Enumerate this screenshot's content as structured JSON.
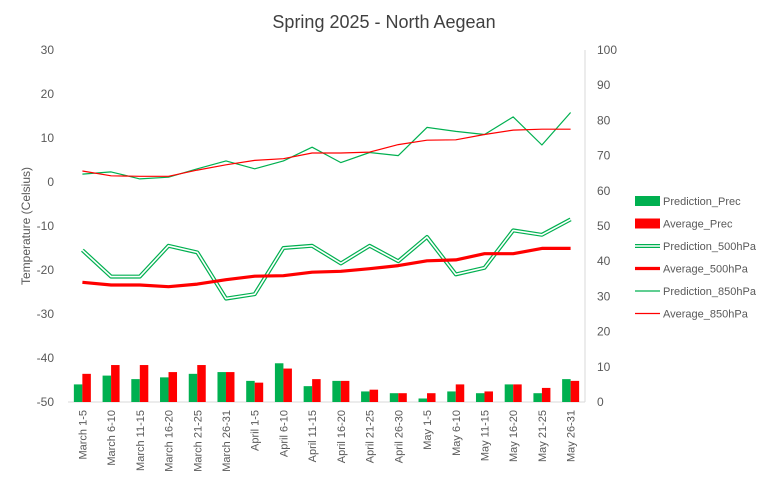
{
  "chart_data": {
    "type": "line",
    "title": "Spring 2025 - North Aegean",
    "ylabel": "Temperature (Celsius)",
    "xlabel": "",
    "ylim": [
      -50,
      30
    ],
    "y2lim": [
      0,
      100
    ],
    "yticks": [
      30,
      20,
      10,
      0,
      -10,
      -20,
      -30,
      -40,
      -50
    ],
    "y2ticks": [
      100,
      90,
      80,
      70,
      60,
      50,
      40,
      30,
      20,
      10,
      0
    ],
    "grid": false,
    "legend_position": "right",
    "categories": [
      "March 1-5",
      "March 6-10",
      "March 11-15",
      "March 16-20",
      "March 21-25",
      "March 26-31",
      "April 1-5",
      "April 6-10",
      "April 11-15",
      "April 16-20",
      "April 21-25",
      "April 26-30",
      "May 1-5",
      "May 6-10",
      "May 11-15",
      "May 16-20",
      "May 21-25",
      "May 26-31"
    ],
    "series": [
      {
        "name": "Prediction_Prec",
        "type": "bar",
        "axis": "right",
        "color": "#00b050",
        "values": [
          5,
          7.5,
          6.5,
          7,
          8,
          8.5,
          6,
          11,
          4.5,
          6,
          3,
          2.5,
          1,
          3,
          2.5,
          5,
          2.5,
          6.5
        ]
      },
      {
        "name": "Average_Prec",
        "type": "bar",
        "axis": "right",
        "color": "#ff0000",
        "values": [
          8,
          10.5,
          10.5,
          8.5,
          10.5,
          8.5,
          5.5,
          9.5,
          6.5,
          6,
          3.5,
          2.5,
          2.5,
          5,
          3,
          5,
          4,
          6
        ]
      },
      {
        "name": "Prediction_500hPa",
        "type": "line",
        "style": "double",
        "axis": "left",
        "color": "#00b050",
        "values": [
          -15.5,
          -21.5,
          -21.5,
          -14.5,
          -16,
          -26.5,
          -25.5,
          -15,
          -14.5,
          -18.5,
          -14.5,
          -18,
          -12.5,
          -21,
          -19.5,
          -11,
          -12,
          -8.5
        ]
      },
      {
        "name": "Average_500hPa",
        "type": "line",
        "style": "thick",
        "axis": "left",
        "color": "#ff0000",
        "values": [
          -22.8,
          -23.4,
          -23.4,
          -23.8,
          -23.2,
          -22.2,
          -21.4,
          -21.3,
          -20.5,
          -20.3,
          -19.7,
          -19,
          -17.9,
          -17.7,
          -16.3,
          -16.3,
          -15.1,
          -15.1
        ]
      },
      {
        "name": "Prediction_850hPa",
        "type": "line",
        "style": "thin",
        "axis": "left",
        "color": "#00b050",
        "values": [
          1.8,
          2.3,
          0.7,
          1.1,
          3,
          4.8,
          3,
          4.8,
          7.9,
          4.4,
          6.7,
          6,
          12.4,
          11.5,
          10.8,
          14.8,
          8.4,
          15.8
        ]
      },
      {
        "name": "Average_850hPa",
        "type": "line",
        "style": "thin",
        "axis": "left",
        "color": "#ff0000",
        "values": [
          2.5,
          1.4,
          1.3,
          1.3,
          2.7,
          3.9,
          4.9,
          5.3,
          6.6,
          6.6,
          6.8,
          8.5,
          9.5,
          9.6,
          10.8,
          11.8,
          12,
          12
        ]
      }
    ]
  }
}
